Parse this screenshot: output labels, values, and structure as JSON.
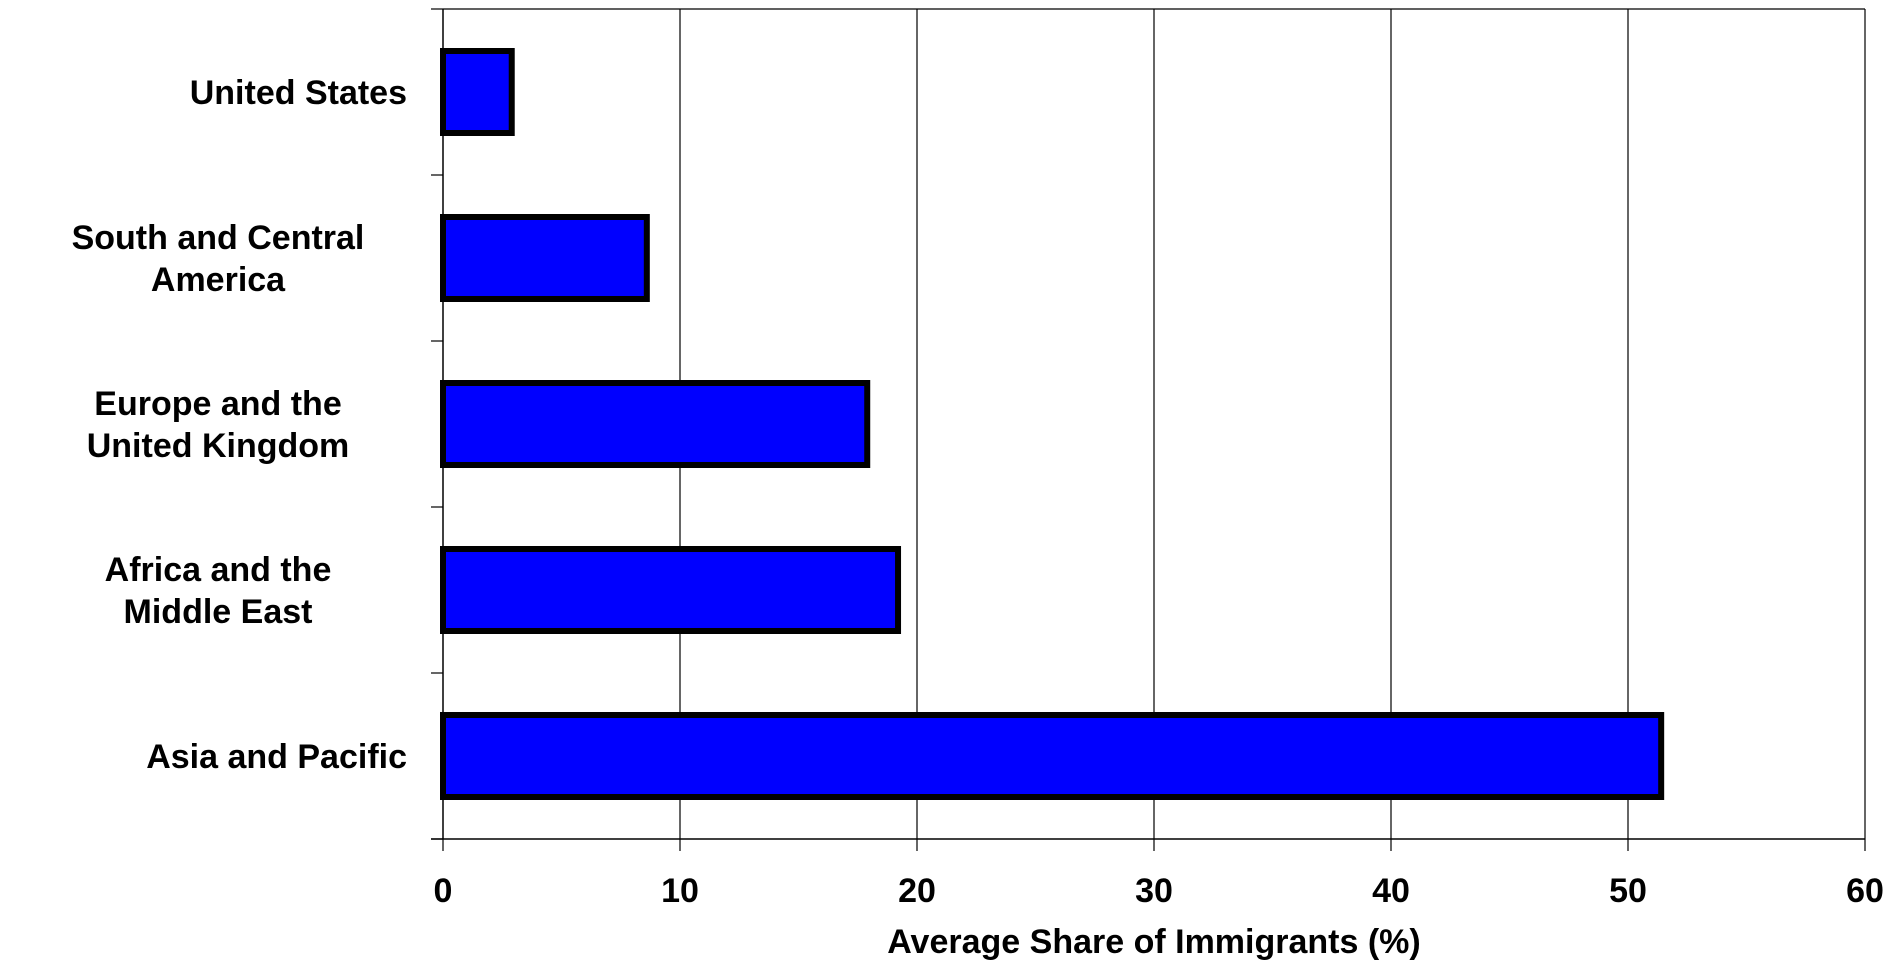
{
  "chart_data": {
    "type": "bar",
    "orientation": "horizontal",
    "categories": [
      [
        "United States"
      ],
      [
        "South and Central",
        "America"
      ],
      [
        "Europe and the",
        "United Kingdom"
      ],
      [
        "Africa and the",
        "Middle East"
      ],
      [
        "Asia and Pacific"
      ]
    ],
    "values": [
      2.9,
      8.6,
      17.9,
      19.2,
      51.4
    ],
    "title": "",
    "xlabel": "Average Share of Immigrants (%)",
    "ylabel": "",
    "xlim": [
      0,
      60
    ],
    "xticks": [
      0,
      10,
      20,
      30,
      40,
      50,
      60
    ],
    "grid": "vertical",
    "bar_color": "#0000ff",
    "bar_edge_color": "#000000",
    "legend": "none"
  }
}
